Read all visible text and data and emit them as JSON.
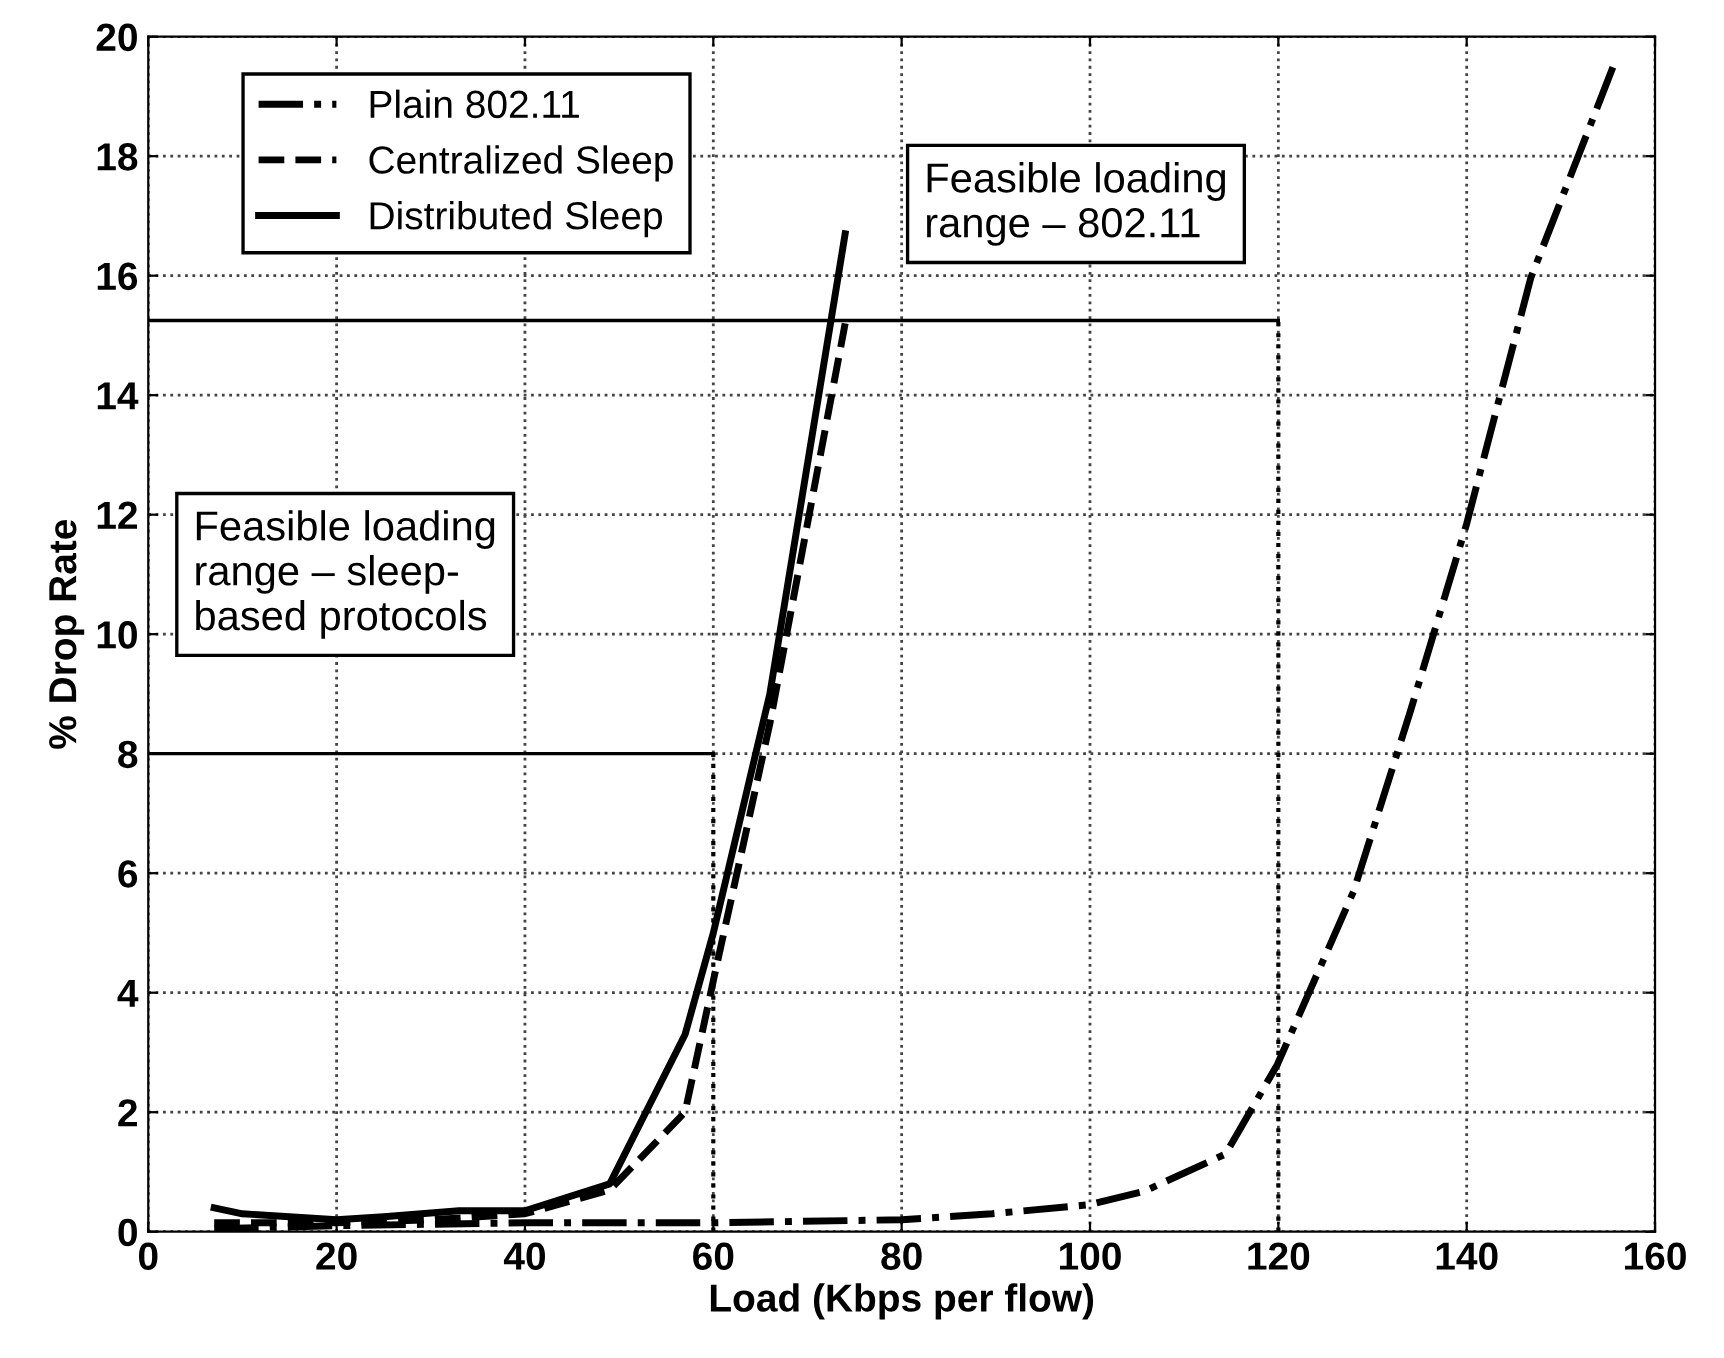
{
  "chart_data": {
    "type": "line",
    "xlabel": "Load (Kbps per flow)",
    "ylabel": "% Drop Rate",
    "xlim": [
      0,
      160
    ],
    "xticks": [
      0,
      20,
      40,
      60,
      80,
      100,
      120,
      140,
      160
    ],
    "ylim": [
      0,
      20
    ],
    "yticks": [
      0,
      2,
      4,
      6,
      8,
      10,
      12,
      14,
      16,
      18,
      20
    ],
    "grid": true,
    "legend": "top left",
    "series": [
      {
        "name": "Plain 802.11",
        "color": "#000000",
        "line_style": "dashdot",
        "x": [
          7,
          20,
          40,
          60,
          80,
          89.6,
          99.8,
          105.8,
          114.4,
          119.9,
          128,
          134,
          140,
          146.8,
          155.8
        ],
        "values": [
          0.05,
          0.1,
          0.15,
          0.15,
          0.2,
          0.3,
          0.45,
          0.68,
          1.3,
          2.8,
          5.7,
          8.7,
          11.85,
          15.96,
          19.6
        ]
      },
      {
        "name": "Centralized Sleep",
        "color": "#000000",
        "line_style": "dashed",
        "x": [
          7,
          10,
          20,
          30,
          40,
          49,
          57,
          60,
          66,
          74
        ],
        "values": [
          0.15,
          0.15,
          0.15,
          0.2,
          0.3,
          0.7,
          2,
          4.2,
          8.5,
          15.2
        ]
      },
      {
        "name": "Distributed Sleep",
        "color": "#000000",
        "line_style": "solid",
        "x": [
          7,
          10,
          20,
          25,
          33,
          40,
          49,
          57,
          60,
          66,
          74
        ],
        "values": [
          0.4,
          0.3,
          0.2,
          0.25,
          0.35,
          0.35,
          0.8,
          3.3,
          5,
          9,
          16.7
        ]
      },
      {
        "color": "#000000",
        "line_style": "solid",
        "x": [
          0,
          120
        ],
        "values": [
          15.25,
          15.25
        ]
      },
      {
        "color": "#000000",
        "line_style": "solid",
        "x": [
          0,
          60
        ],
        "values": [
          8,
          8
        ]
      }
    ],
    "ref_lines": [
      {
        "axis": "x",
        "value": 120,
        "line_style": "dotted",
        "color": "#000000"
      },
      {
        "axis": "x",
        "value": 60,
        "line_style": "dotted",
        "color": "#000000"
      }
    ],
    "annotations": [
      "Feasible loading\nrange – 802.11",
      "Feasible loading\nrange – sleep-\nbased protocols"
    ]
  }
}
